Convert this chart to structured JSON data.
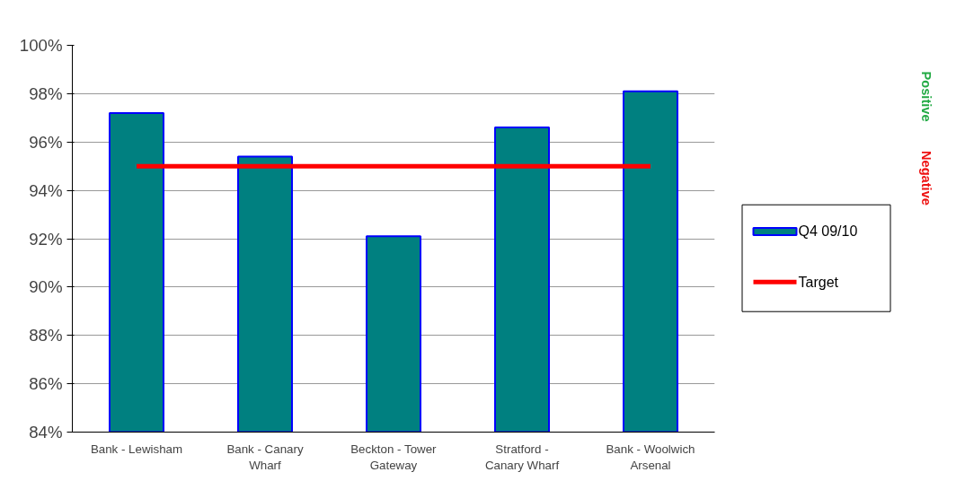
{
  "chart_data": {
    "type": "bar",
    "categories": [
      "Bank - Lewisham",
      "Bank - Canary Wharf",
      "Beckton - Tower Gateway",
      "Stratford - Canary Wharf",
      "Bank - Woolwich Arsenal"
    ],
    "series": [
      {
        "name": "Q4 09/10",
        "color": "#008080",
        "values": [
          97.2,
          95.4,
          92.1,
          96.6,
          98.1
        ]
      },
      {
        "name": "Target",
        "type": "line",
        "color": "#ff0000",
        "values": [
          95,
          95,
          95,
          95,
          95
        ]
      }
    ],
    "ylim": [
      84,
      100
    ],
    "yticks": [
      {
        "value": 84,
        "label": "84%"
      },
      {
        "value": 86,
        "label": "86%"
      },
      {
        "value": 88,
        "label": "88%"
      },
      {
        "value": 90,
        "label": "90%"
      },
      {
        "value": 92,
        "label": "92%"
      },
      {
        "value": 94,
        "label": "94%"
      },
      {
        "value": 96,
        "label": "96%"
      },
      {
        "value": 98,
        "label": "98%"
      },
      {
        "value": 100,
        "label": "100%"
      }
    ],
    "grid": "y",
    "legend": "right",
    "annotations": [
      "Positive",
      "Negative"
    ]
  }
}
